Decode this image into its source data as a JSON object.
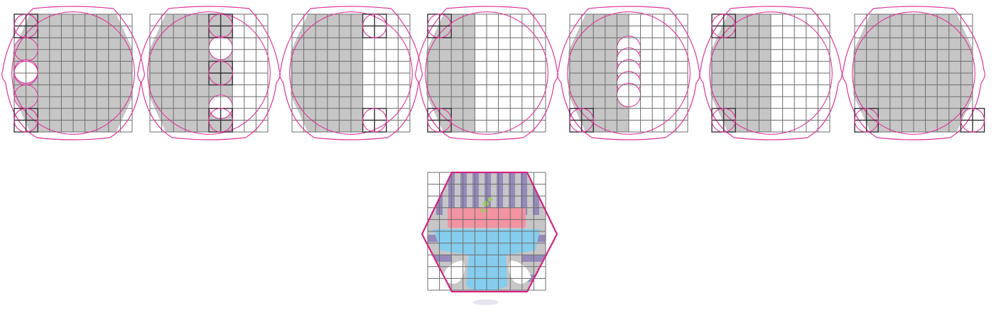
{
  "figure": {
    "grid": {
      "columns": 10,
      "rows": 10
    },
    "colors": {
      "background": "#ffffff",
      "fill_gray": "#c6c6c6",
      "grid_line": "#6d6d6d",
      "guide_magenta": "#e0359a",
      "corner_box": "#333333",
      "hex_outline": "#d4247f",
      "stripe_purple": "#8d7fb8",
      "band_pink": "#f394a2",
      "band_blue": "#84cdee",
      "leaf_green": "#9ccc65",
      "shadow": "#e6e4ee"
    },
    "steps": [
      {
        "name": "step-1",
        "fill_columns": [
          0,
          10
        ],
        "white_circles_column": 0,
        "white_circles_rows": [
          4
        ],
        "corner_boxes": [
          [
            0,
            0
          ],
          [
            0,
            9
          ]
        ]
      },
      {
        "name": "step-2",
        "fill_columns": [
          0,
          7
        ],
        "white_circles_column": 5,
        "white_circles_rows": [
          2,
          7
        ],
        "corner_boxes": [
          [
            5,
            0
          ],
          [
            5,
            4
          ],
          [
            5,
            9
          ]
        ]
      },
      {
        "name": "step-3",
        "fill_columns": [
          0,
          6
        ],
        "white_circles_column": 6,
        "white_circles_rows": [],
        "corner_boxes": [
          [
            6,
            0
          ],
          [
            6,
            9
          ]
        ]
      },
      {
        "name": "step-4",
        "fill_columns": [
          0,
          4
        ],
        "white_circles_column": 2,
        "white_circles_rows": [],
        "corner_boxes": [
          [
            0,
            0
          ],
          [
            0,
            9
          ]
        ]
      },
      {
        "name": "step-5",
        "fill_columns": [
          0,
          5
        ],
        "white_circles_column": 4,
        "white_circles_rows": [
          2,
          3,
          4,
          5,
          6
        ],
        "corner_boxes": [
          [
            0,
            9
          ]
        ]
      },
      {
        "name": "step-6",
        "fill_columns": [
          0,
          5
        ],
        "white_circles_column": 5,
        "white_circles_rows": [],
        "corner_boxes": [
          [
            0,
            0
          ],
          [
            0,
            9
          ]
        ]
      },
      {
        "name": "step-7",
        "fill_columns": [
          0,
          10
        ],
        "white_circles_column": 0,
        "white_circles_rows": [],
        "corner_boxes": [
          [
            0,
            9
          ],
          [
            9,
            9
          ]
        ]
      }
    ],
    "final_icon": {
      "stripes": 9,
      "bands": [
        "purple-stripes",
        "pink-band",
        "blue-band",
        "white-tufts"
      ]
    }
  }
}
